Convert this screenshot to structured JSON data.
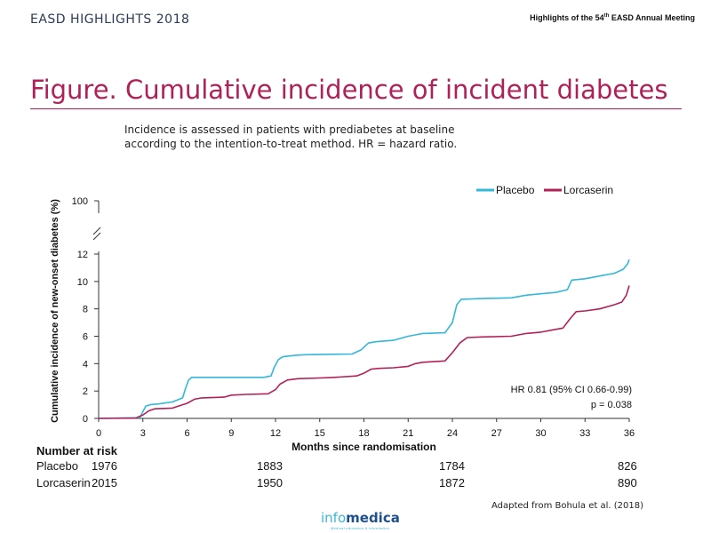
{
  "header": {
    "left": "EASD HIGHLIGHTS 2018",
    "right_prefix": "Highlights of the 54",
    "right_sup": "th",
    "right_suffix": " EASD Annual Meeting"
  },
  "title": "Figure. Cumulative incidence of incident diabetes",
  "subtitle_line1": "Incidence is assessed in patients with prediabetes at baseline",
  "subtitle_line2": "according to the intention-to-treat method. HR = hazard ratio.",
  "chart_data": {
    "type": "line",
    "xlabel": "Months since randomisation",
    "ylabel": "Cumulative incidence of new-onset diabetes (%)",
    "xticks": [
      0,
      3,
      6,
      9,
      12,
      15,
      18,
      21,
      24,
      27,
      30,
      33,
      36
    ],
    "yticks": [
      0,
      2,
      4,
      6,
      8,
      10,
      12
    ],
    "ybreak_label": "100",
    "xlim": [
      0,
      36
    ],
    "ylim": [
      0,
      12
    ],
    "legend_position": "top-right",
    "colors": {
      "placebo": "#35b7d8",
      "lorcaserin": "#b0215a"
    },
    "series": [
      {
        "name": "Placebo",
        "points": [
          [
            0,
            0
          ],
          [
            2.8,
            0.05
          ],
          [
            3.0,
            0.5
          ],
          [
            3.2,
            0.9
          ],
          [
            3.5,
            1.0
          ],
          [
            4.0,
            1.05
          ],
          [
            5.0,
            1.2
          ],
          [
            5.7,
            1.5
          ],
          [
            5.9,
            2.2
          ],
          [
            6.1,
            2.8
          ],
          [
            6.3,
            3.0
          ],
          [
            8.5,
            3.0
          ],
          [
            11.2,
            3.0
          ],
          [
            11.7,
            3.1
          ],
          [
            11.9,
            3.7
          ],
          [
            12.2,
            4.3
          ],
          [
            12.5,
            4.5
          ],
          [
            13.3,
            4.6
          ],
          [
            14.0,
            4.65
          ],
          [
            17.2,
            4.7
          ],
          [
            17.8,
            5.0
          ],
          [
            18.3,
            5.5
          ],
          [
            18.8,
            5.6
          ],
          [
            20.0,
            5.7
          ],
          [
            21.0,
            6.0
          ],
          [
            22.0,
            6.2
          ],
          [
            23.5,
            6.25
          ],
          [
            24.0,
            7.0
          ],
          [
            24.3,
            8.3
          ],
          [
            24.6,
            8.7
          ],
          [
            26.0,
            8.75
          ],
          [
            28.0,
            8.8
          ],
          [
            29.0,
            9.0
          ],
          [
            30.0,
            9.1
          ],
          [
            31.0,
            9.2
          ],
          [
            31.8,
            9.4
          ],
          [
            32.1,
            10.1
          ],
          [
            33.0,
            10.2
          ],
          [
            34.0,
            10.4
          ],
          [
            35.0,
            10.6
          ],
          [
            35.6,
            10.9
          ],
          [
            35.9,
            11.3
          ],
          [
            36.0,
            11.6
          ]
        ]
      },
      {
        "name": "Lorcaserin",
        "points": [
          [
            0,
            0
          ],
          [
            2.5,
            0.02
          ],
          [
            3.0,
            0.25
          ],
          [
            3.4,
            0.55
          ],
          [
            3.8,
            0.7
          ],
          [
            5.0,
            0.75
          ],
          [
            6.0,
            1.1
          ],
          [
            6.5,
            1.4
          ],
          [
            7.0,
            1.5
          ],
          [
            8.5,
            1.55
          ],
          [
            9.0,
            1.7
          ],
          [
            10.0,
            1.75
          ],
          [
            11.5,
            1.8
          ],
          [
            12.0,
            2.1
          ],
          [
            12.3,
            2.5
          ],
          [
            12.8,
            2.8
          ],
          [
            13.5,
            2.9
          ],
          [
            15.0,
            2.95
          ],
          [
            16.0,
            3.0
          ],
          [
            17.5,
            3.1
          ],
          [
            18.0,
            3.3
          ],
          [
            18.5,
            3.6
          ],
          [
            19.0,
            3.65
          ],
          [
            20.0,
            3.7
          ],
          [
            21.0,
            3.8
          ],
          [
            21.5,
            4.0
          ],
          [
            22.0,
            4.1
          ],
          [
            23.5,
            4.2
          ],
          [
            24.0,
            4.8
          ],
          [
            24.5,
            5.5
          ],
          [
            25.0,
            5.9
          ],
          [
            26.0,
            5.95
          ],
          [
            28.0,
            6.0
          ],
          [
            29.0,
            6.2
          ],
          [
            30.0,
            6.3
          ],
          [
            31.0,
            6.5
          ],
          [
            31.5,
            6.6
          ],
          [
            32.0,
            7.3
          ],
          [
            32.4,
            7.8
          ],
          [
            33.0,
            7.85
          ],
          [
            34.0,
            8.0
          ],
          [
            35.0,
            8.3
          ],
          [
            35.5,
            8.5
          ],
          [
            35.8,
            9.0
          ],
          [
            36.0,
            9.7
          ]
        ]
      }
    ],
    "annotation_line1": "HR 0.81 (95% CI 0.66-0.99)",
    "annotation_line2": "p = 0.038"
  },
  "risk_table": {
    "title": "Number at risk",
    "rows": [
      {
        "label": "Placebo",
        "start": "1976",
        "m12": "1883",
        "m24": "1784",
        "m36": "826"
      },
      {
        "label": "Lorcaserin",
        "start": "2015",
        "m12": "1950",
        "m24": "1872",
        "m36": "890"
      }
    ]
  },
  "source": "Adapted from Bohula et al. (2018)",
  "logo": {
    "part1": "info",
    "part2": "medica",
    "tagline": "Medical education & information"
  }
}
